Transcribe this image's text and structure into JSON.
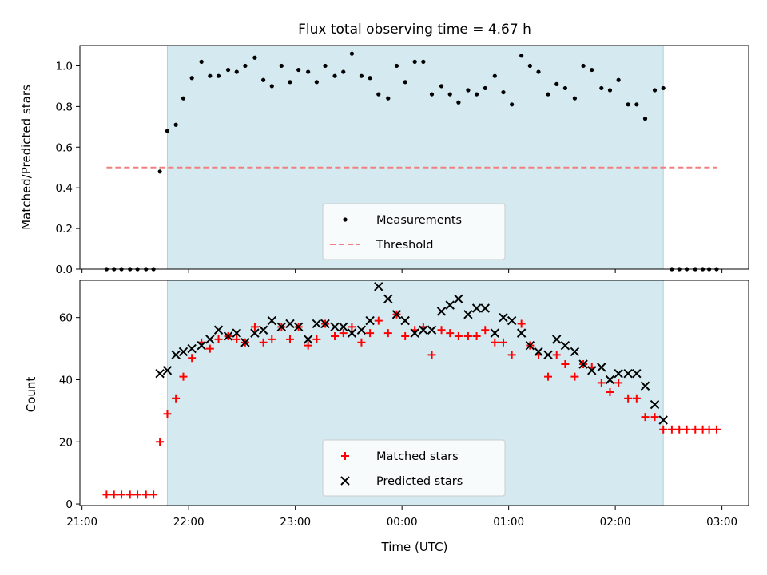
{
  "chart_data": [
    {
      "type": "scatter",
      "title": "Flux total observing time = 4.67 h",
      "xlabel": "",
      "ylabel": "Matched/Predicted stars",
      "xlim": [
        20.98,
        27.25
      ],
      "ylim": [
        0,
        1.1
      ],
      "yticks": [
        0.0,
        0.2,
        0.4,
        0.6,
        0.8,
        1.0
      ],
      "ytick_labels": [
        "0.0",
        "0.2",
        "0.4",
        "0.6",
        "0.8",
        "1.0"
      ],
      "xticks": [
        21,
        22,
        23,
        24,
        25,
        26,
        27
      ],
      "shaded_span": [
        21.8,
        26.45
      ],
      "shaded_color": "#d4eaf0",
      "threshold": {
        "name": "Threshold",
        "y": 0.5,
        "x_range": [
          21.23,
          26.95
        ],
        "color": "#f08080"
      },
      "series": [
        {
          "name": "Measurements",
          "marker": "dot",
          "color": "#000000",
          "x": [
            21.23,
            21.3,
            21.37,
            21.45,
            21.52,
            21.6,
            21.67,
            21.73,
            21.8,
            21.88,
            21.95,
            22.03,
            22.12,
            22.2,
            22.28,
            22.37,
            22.45,
            22.53,
            22.62,
            22.7,
            22.78,
            22.87,
            22.95,
            23.03,
            23.12,
            23.2,
            23.28,
            23.37,
            23.45,
            23.53,
            23.62,
            23.7,
            23.78,
            23.87,
            23.95,
            24.03,
            24.12,
            24.2,
            24.28,
            24.37,
            24.45,
            24.53,
            24.62,
            24.7,
            24.78,
            24.87,
            24.95,
            25.03,
            25.12,
            25.2,
            25.28,
            25.37,
            25.45,
            25.53,
            25.62,
            25.7,
            25.78,
            25.87,
            25.95,
            26.03,
            26.12,
            26.2,
            26.28,
            26.37,
            26.45,
            26.53,
            26.6,
            26.67,
            26.75,
            26.82,
            26.88,
            26.95
          ],
          "y": [
            0.0,
            0.0,
            0.0,
            0.0,
            0.0,
            0.0,
            0.0,
            0.48,
            0.68,
            0.71,
            0.84,
            0.94,
            1.02,
            0.95,
            0.95,
            0.98,
            0.97,
            1.0,
            1.04,
            0.93,
            0.9,
            1.0,
            0.92,
            0.98,
            0.97,
            0.92,
            1.0,
            0.95,
            0.97,
            1.06,
            0.95,
            0.94,
            0.86,
            0.84,
            1.0,
            0.92,
            1.02,
            1.02,
            0.86,
            0.9,
            0.86,
            0.82,
            0.88,
            0.86,
            0.89,
            0.95,
            0.87,
            0.81,
            1.05,
            1.0,
            0.97,
            0.86,
            0.91,
            0.89,
            0.84,
            1.0,
            0.98,
            0.89,
            0.88,
            0.93,
            0.81,
            0.81,
            0.74,
            0.88,
            0.89,
            0.0,
            0.0,
            0.0,
            0.0,
            0.0,
            0.0,
            0.0
          ]
        }
      ],
      "legend": {
        "position": "lower center",
        "entries": [
          "Measurements",
          "Threshold"
        ]
      }
    },
    {
      "type": "scatter",
      "title": "",
      "xlabel": "Time (UTC)",
      "ylabel": "Count",
      "xlim": [
        20.98,
        27.25
      ],
      "ylim": [
        -0.5,
        72
      ],
      "yticks": [
        0,
        20,
        40,
        60
      ],
      "xticks": [
        21,
        22,
        23,
        24,
        25,
        26,
        27
      ],
      "xtick_labels": [
        "21:00",
        "22:00",
        "23:00",
        "00:00",
        "01:00",
        "02:00",
        "03:00"
      ],
      "shaded_span": [
        21.8,
        26.45
      ],
      "shaded_color": "#d4eaf0",
      "series": [
        {
          "name": "Matched stars",
          "marker": "plus",
          "color": "#ff0000",
          "x": [
            21.23,
            21.3,
            21.37,
            21.45,
            21.52,
            21.6,
            21.67,
            21.73,
            21.8,
            21.88,
            21.95,
            22.03,
            22.12,
            22.2,
            22.28,
            22.37,
            22.45,
            22.53,
            22.62,
            22.7,
            22.78,
            22.87,
            22.95,
            23.03,
            23.12,
            23.2,
            23.28,
            23.37,
            23.45,
            23.53,
            23.62,
            23.7,
            23.78,
            23.87,
            23.95,
            24.03,
            24.12,
            24.2,
            24.28,
            24.37,
            24.45,
            24.53,
            24.62,
            24.7,
            24.78,
            24.87,
            24.95,
            25.03,
            25.12,
            25.2,
            25.28,
            25.37,
            25.45,
            25.53,
            25.62,
            25.7,
            25.78,
            25.87,
            25.95,
            26.03,
            26.12,
            26.2,
            26.28,
            26.37,
            26.45,
            26.53,
            26.6,
            26.67,
            26.75,
            26.82,
            26.88,
            26.95
          ],
          "y": [
            3,
            3,
            3,
            3,
            3,
            3,
            3,
            20,
            29,
            34,
            41,
            47,
            52,
            50,
            53,
            54,
            53,
            52,
            57,
            52,
            53,
            57,
            53,
            57,
            51,
            53,
            58,
            54,
            55,
            57,
            52,
            55,
            59,
            55,
            61,
            54,
            56,
            57,
            48,
            56,
            55,
            54,
            54,
            54,
            56,
            52,
            52,
            48,
            58,
            51,
            48,
            41,
            48,
            45,
            41,
            45,
            44,
            39,
            36,
            39,
            34,
            34,
            28,
            28,
            24,
            24,
            24,
            24,
            24,
            24,
            24,
            24
          ]
        },
        {
          "name": "Predicted stars",
          "marker": "x",
          "color": "#000000",
          "x": [
            21.73,
            21.8,
            21.88,
            21.95,
            22.03,
            22.12,
            22.2,
            22.28,
            22.37,
            22.45,
            22.53,
            22.62,
            22.7,
            22.78,
            22.87,
            22.95,
            23.03,
            23.12,
            23.2,
            23.28,
            23.37,
            23.45,
            23.53,
            23.62,
            23.7,
            23.78,
            23.87,
            23.95,
            24.03,
            24.12,
            24.2,
            24.28,
            24.37,
            24.45,
            24.53,
            24.62,
            24.7,
            24.78,
            24.87,
            24.95,
            25.03,
            25.12,
            25.2,
            25.28,
            25.37,
            25.45,
            25.53,
            25.62,
            25.7,
            25.78,
            25.87,
            25.95,
            26.03,
            26.12,
            26.2,
            26.28,
            26.37,
            26.45
          ],
          "y": [
            42,
            43,
            48,
            49,
            50,
            51,
            53,
            56,
            54,
            55,
            52,
            55,
            56,
            59,
            57,
            58,
            57,
            53,
            58,
            58,
            57,
            57,
            55,
            56,
            59,
            70,
            66,
            61,
            59,
            55,
            56,
            56,
            62,
            64,
            66,
            61,
            63,
            63,
            55,
            60,
            59,
            55,
            51,
            49,
            48,
            53,
            51,
            49,
            45,
            43,
            44,
            40,
            42,
            42,
            42,
            38,
            32,
            27
          ]
        }
      ],
      "legend": {
        "position": "lower center",
        "entries": [
          "Matched stars",
          "Predicted stars"
        ]
      }
    }
  ]
}
